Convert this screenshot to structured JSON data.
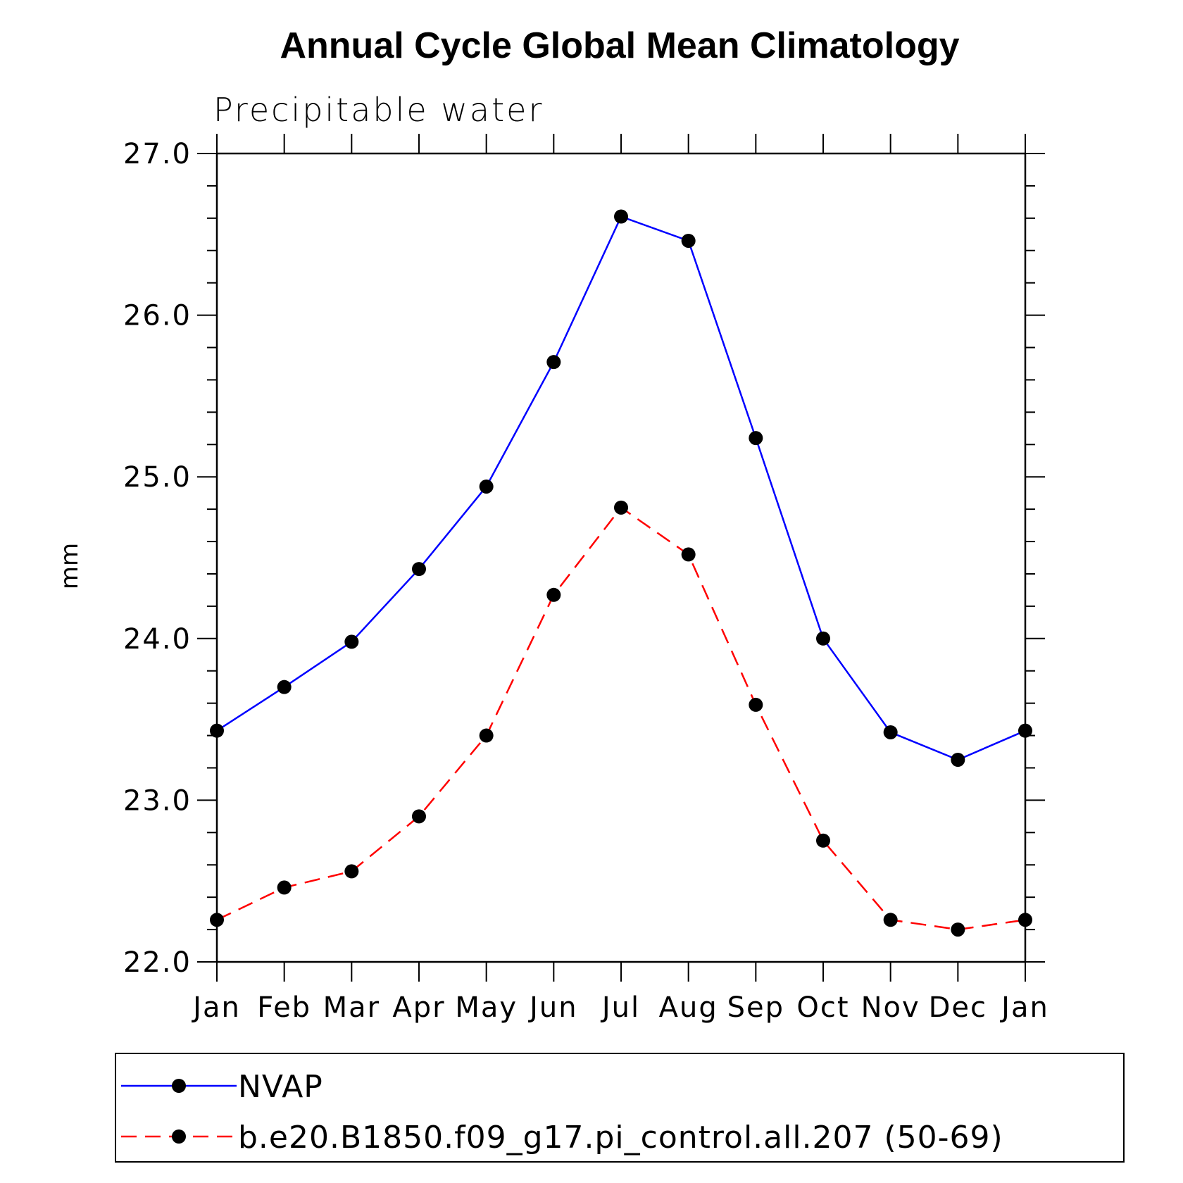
{
  "chart_data": {
    "type": "line",
    "title": "Annual Cycle Global Mean Climatology",
    "subtitle": "Precipitable water",
    "xlabel": "",
    "ylabel": "mm",
    "categories": [
      "Jan",
      "Feb",
      "Mar",
      "Apr",
      "May",
      "Jun",
      "Jul",
      "Aug",
      "Sep",
      "Oct",
      "Nov",
      "Dec",
      "Jan"
    ],
    "ylim": [
      22.0,
      27.0
    ],
    "yticks": [
      "22.0",
      "23.0",
      "24.0",
      "25.0",
      "26.0",
      "27.0"
    ],
    "grid": false,
    "legend_position": "bottom",
    "series": [
      {
        "name": "NVAP",
        "color": "#0000ff",
        "line_style": "solid",
        "marker": "filled-circle",
        "values": [
          23.43,
          23.7,
          23.98,
          24.43,
          24.94,
          25.71,
          26.61,
          26.46,
          25.24,
          24.0,
          23.42,
          23.25,
          23.43
        ]
      },
      {
        "name": "b.e20.B1850.f09_g17.pi_control.all.207 (50-69)",
        "color": "#ff0000",
        "line_style": "dashed",
        "marker": "filled-circle",
        "values": [
          22.26,
          22.46,
          22.56,
          22.9,
          23.4,
          24.27,
          24.81,
          24.52,
          23.59,
          22.75,
          22.26,
          22.2,
          22.26
        ]
      }
    ]
  }
}
